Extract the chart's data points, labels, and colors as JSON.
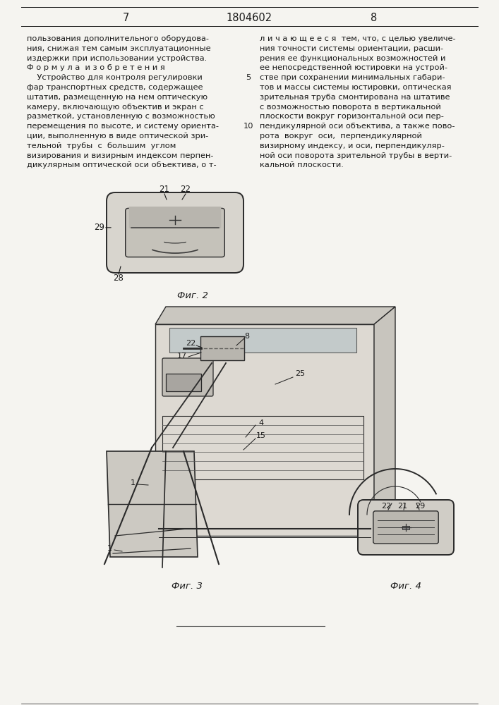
{
  "page_bg": "#f5f4f0",
  "text_color": "#1a1a1a",
  "draw_color": "#2a2a2a",
  "header_page_left": "7",
  "header_patent": "1804602",
  "header_page_right": "8",
  "left_col_text": [
    "пользования дополнительного оборудова-",
    "ния, снижая тем самым эксплуатационные",
    "издержки при использовании устройства.",
    "Ф о р м у л а  и з о б р е т е н и я",
    "    Устройство для контроля регулировки",
    "фар транспортных средств, содержащее",
    "штатив, размещенную на нем оптическую",
    "камеру, включающую объектив и экран с",
    "разметкой, установленную с возможностью",
    "перемещения по высоте, и систему ориента-",
    "ции, выполненную в виде оптической зри-",
    "тельной  трубы  с  большим  углом",
    "визирования и визирным индексом перпен-",
    "дикулярным оптической оси объектива, о т-"
  ],
  "right_col_text": [
    "л и ч а ю щ е е с я  тем, что, с целью увеличе-",
    "ния точности системы ориентации, расши-",
    "рения ее функциональных возможностей и",
    "ее непосредственной юстировки на устрой-",
    "стве при сохранении минимальных габари-",
    "тов и массы системы юстировки, оптическая",
    "зрительная труба смонтирована на штативе",
    "с возможностью поворота в вертикальной",
    "плоскости вокруг горизонтальной оси пер-",
    "пендикулярной оси объектива, а также пово-",
    "рота  вокруг  оси,  перпендикулярной",
    "визирному индексу, и оси, перпендикуляр-",
    "ной оси поворота зрительной трубы в верти-",
    "кальной плоскости."
  ],
  "fig2_caption": "Фиг. 2",
  "fig3_caption": "Фиг. 3",
  "fig4_caption": "Фиг. 4"
}
